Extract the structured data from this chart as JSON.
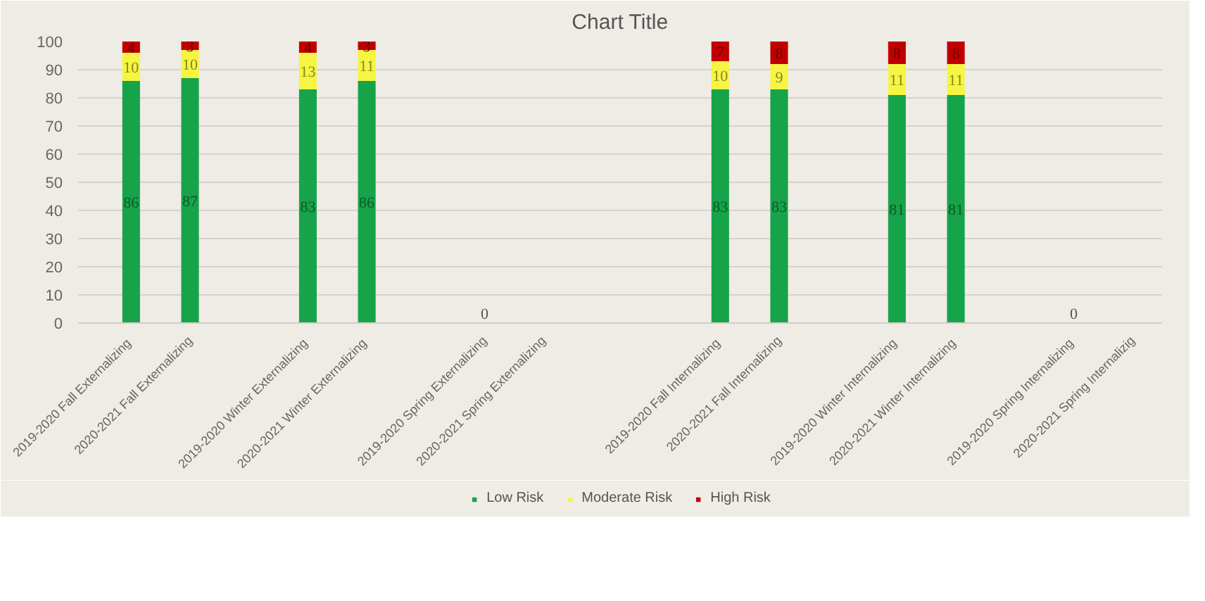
{
  "chart_data": {
    "type": "bar",
    "title": "Chart Title",
    "stacked": true,
    "data_labels": true,
    "grid": "y",
    "legend": "bottom",
    "categories": [
      "2019-2020 Fall  Externalizing",
      "2020-2021 Fall Externalizing",
      null,
      "2019-2020 Winter  Externalizing",
      "2020-2021 Winter  Externalizing",
      null,
      "2019-2020 Spring Externalizing",
      "2020-2021 Spring Externalizing",
      null,
      null,
      "2019-2020 Fall  Internalizing",
      "2020-2021 Fall Internalizing",
      null,
      "2019-2020 Winter  Internalizing",
      "2020-2021 Winter  Internalizing",
      null,
      "2019-2020 Spring  Internalizing",
      "2020-2021 Spring Internalizig"
    ],
    "series": [
      {
        "name": "Low Risk",
        "color": "#17a34a",
        "values": [
          86,
          87,
          null,
          83,
          86,
          null,
          0,
          null,
          null,
          null,
          83,
          83,
          null,
          81,
          81,
          null,
          0,
          null
        ]
      },
      {
        "name": "Moderate Risk",
        "color": "#f5f542",
        "values": [
          10,
          10,
          null,
          13,
          11,
          null,
          null,
          null,
          null,
          null,
          10,
          9,
          null,
          11,
          11,
          null,
          null,
          null
        ]
      },
      {
        "name": "High Risk",
        "color": "#c00000",
        "values": [
          4,
          3,
          null,
          4,
          3,
          null,
          null,
          null,
          null,
          null,
          7,
          8,
          null,
          8,
          8,
          null,
          null,
          null
        ]
      }
    ],
    "ylim": [
      0,
      100
    ],
    "yticks": [
      0,
      10,
      20,
      30,
      40,
      50,
      60,
      70,
      80,
      90,
      100
    ]
  }
}
